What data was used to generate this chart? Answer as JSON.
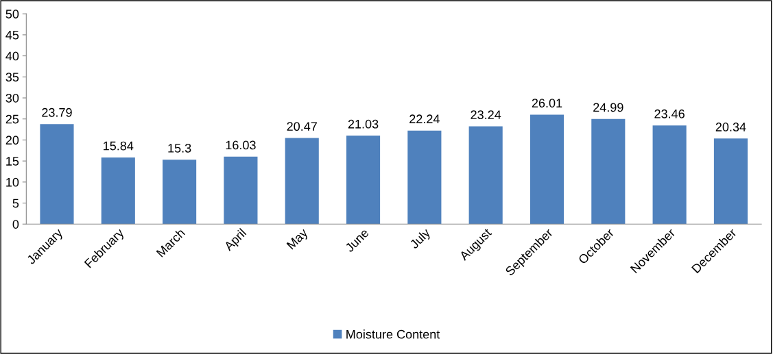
{
  "chart_data": {
    "type": "bar",
    "categories": [
      "January",
      "February",
      "March",
      "April",
      "May",
      "June",
      "July",
      "August",
      "September",
      "October",
      "November",
      "December"
    ],
    "series": [
      {
        "name": "Moisture Content",
        "color": "#4f81bd",
        "values": [
          23.79,
          15.84,
          15.3,
          16.03,
          20.47,
          21.03,
          22.24,
          23.24,
          26.01,
          24.99,
          23.46,
          20.34
        ]
      }
    ],
    "ylim": [
      0,
      50
    ],
    "yticks": [
      0,
      5,
      10,
      15,
      20,
      25,
      30,
      35,
      40,
      45,
      50
    ],
    "data_labels": true,
    "grid": false,
    "legend": "bottom"
  }
}
